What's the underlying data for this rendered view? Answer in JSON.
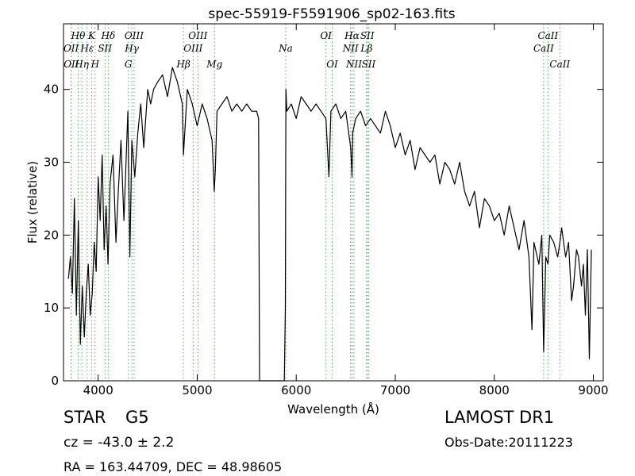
{
  "chart_data": {
    "type": "line",
    "title": "spec-55919-F5591906_sp02-163.fits",
    "xlabel": "Wavelength (Å)",
    "ylabel": "Flux (relative)",
    "xlim": [
      3650,
      9100
    ],
    "ylim": [
      0,
      49
    ],
    "xticks": [
      4000,
      5000,
      6000,
      7000,
      8000,
      9000
    ],
    "yticks": [
      0,
      10,
      20,
      30,
      40
    ],
    "grid": false,
    "legend": "none",
    "line_color": "#000000",
    "marker_color": "#4caf50",
    "series": [
      {
        "x": [
          3700,
          3720,
          3740,
          3760,
          3780,
          3800,
          3820,
          3840,
          3860,
          3880,
          3900,
          3920,
          3940,
          3960,
          3980,
          4000,
          4020,
          4040,
          4060,
          4080,
          4100,
          4120,
          4150,
          4180,
          4200,
          4230,
          4260,
          4300,
          4320,
          4340,
          4370,
          4400,
          4430,
          4460,
          4500,
          4530,
          4560,
          4600,
          4650,
          4700,
          4750,
          4800,
          4850,
          4861,
          4900,
          4950,
          5000,
          5050,
          5100,
          5150,
          5172,
          5183,
          5200,
          5250,
          5300,
          5350,
          5400,
          5450,
          5500,
          5550,
          5600,
          5620,
          5630,
          5800,
          5880,
          5890,
          5896,
          5905,
          5950,
          6000,
          6050,
          6100,
          6150,
          6200,
          6250,
          6300,
          6330,
          6350,
          6400,
          6450,
          6500,
          6550,
          6563,
          6570,
          6600,
          6650,
          6700,
          6750,
          6800,
          6850,
          6900,
          6950,
          7000,
          7050,
          7100,
          7150,
          7200,
          7250,
          7300,
          7350,
          7400,
          7450,
          7500,
          7550,
          7600,
          7650,
          7700,
          7750,
          7800,
          7850,
          7900,
          7950,
          8000,
          8050,
          8100,
          8150,
          8200,
          8250,
          8300,
          8350,
          8380,
          8400,
          8450,
          8480,
          8498,
          8520,
          8542,
          8560,
          8600,
          8640,
          8662,
          8680,
          8720,
          8750,
          8780,
          8800,
          8830,
          8850,
          8880,
          8900,
          8920,
          8940,
          8960,
          8980
        ],
        "y": [
          14,
          17,
          12,
          25,
          9,
          22,
          5,
          13,
          6,
          12,
          16,
          9,
          12,
          19,
          15,
          28,
          22,
          31,
          18,
          24,
          16,
          27,
          31,
          19,
          25,
          33,
          22,
          37,
          17,
          33,
          28,
          34,
          38,
          32,
          40,
          38,
          40,
          41,
          42,
          39,
          43,
          41,
          38,
          31,
          40,
          38,
          35,
          38,
          36,
          33,
          26,
          29,
          37,
          38,
          39,
          37,
          38,
          37,
          38,
          37,
          37,
          36,
          0,
          0,
          0,
          10,
          40,
          37,
          38,
          36,
          39,
          38,
          37,
          38,
          37,
          36,
          28,
          37,
          38,
          36,
          37,
          32,
          28,
          34,
          36,
          37,
          35,
          36,
          35,
          34,
          37,
          35,
          32,
          34,
          31,
          33,
          29,
          32,
          31,
          30,
          31,
          27,
          30,
          29,
          27,
          30,
          26,
          24,
          26,
          21,
          25,
          24,
          22,
          23,
          20,
          24,
          21,
          18,
          22,
          17,
          7,
          19,
          16,
          20,
          4,
          17,
          16,
          20,
          19,
          17,
          19,
          21,
          17,
          19,
          11,
          13,
          18,
          17,
          13,
          16,
          9,
          18,
          3,
          18
        ]
      }
    ],
    "spectral_lines": [
      {
        "name": "OII",
        "wavelength": 3727,
        "row": 2
      },
      {
        "name": "OII",
        "wavelength": 3729,
        "row": 3
      },
      {
        "name": "Hθ",
        "wavelength": 3798,
        "row": 1
      },
      {
        "name": "Hη",
        "wavelength": 3835,
        "row": 3
      },
      {
        "name": "Hε",
        "wavelength": 3889,
        "row": 2
      },
      {
        "name": "K",
        "wavelength": 3934,
        "row": 1
      },
      {
        "name": "SII",
        "wavelength": 4069,
        "row": 2
      },
      {
        "name": "H",
        "wavelength": 3969,
        "row": 3
      },
      {
        "name": "Hδ",
        "wavelength": 4102,
        "row": 1
      },
      {
        "name": "Hγ",
        "wavelength": 4340,
        "row": 2
      },
      {
        "name": "G",
        "wavelength": 4305,
        "row": 3
      },
      {
        "name": "OIII",
        "wavelength": 4363,
        "row": 1
      },
      {
        "name": "OIII",
        "wavelength": 5007,
        "row": 1
      },
      {
        "name": "OIII",
        "wavelength": 4959,
        "row": 2
      },
      {
        "name": "Hβ",
        "wavelength": 4861,
        "row": 3
      },
      {
        "name": "Mg",
        "wavelength": 5175,
        "row": 3
      },
      {
        "name": "Na",
        "wavelength": 5894,
        "row": 2
      },
      {
        "name": "OI",
        "wavelength": 6300,
        "row": 1
      },
      {
        "name": "OI",
        "wavelength": 6363,
        "row": 3
      },
      {
        "name": "Hα",
        "wavelength": 6563,
        "row": 1
      },
      {
        "name": "NII",
        "wavelength": 6548,
        "row": 2
      },
      {
        "name": "NII",
        "wavelength": 6583,
        "row": 3
      },
      {
        "name": "SII",
        "wavelength": 6717,
        "row": 1
      },
      {
        "name": "Lβ",
        "wavelength": 6710,
        "row": 2
      },
      {
        "name": "SII",
        "wavelength": 6731,
        "row": 3
      },
      {
        "name": "CaII",
        "wavelength": 8542,
        "row": 1
      },
      {
        "name": "CaII",
        "wavelength": 8498,
        "row": 2
      },
      {
        "name": "CaII",
        "wavelength": 8662,
        "row": 3
      }
    ]
  },
  "info": {
    "object_class": "STAR",
    "subclass": "G5",
    "survey": "LAMOST DR1",
    "redshift": "cz = -43.0 ± 2.2",
    "obs_date": "Obs-Date:20111223",
    "coordinates": "RA = 163.44709, DEC = 48.98605"
  }
}
